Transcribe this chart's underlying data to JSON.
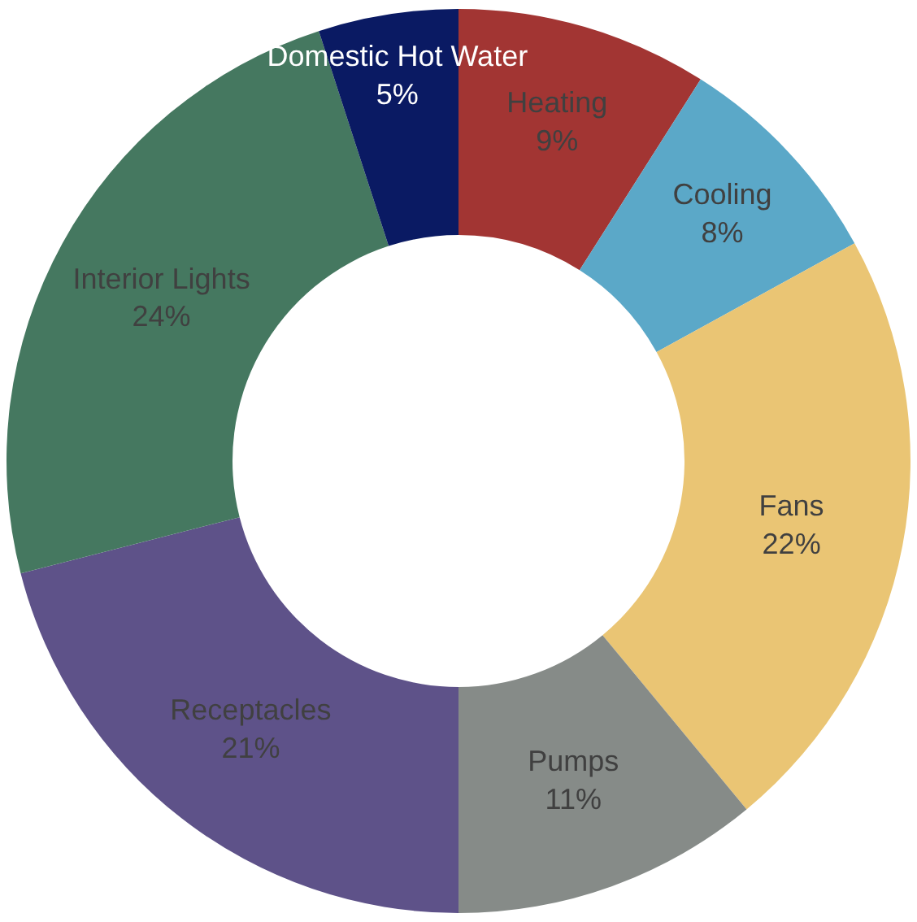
{
  "chart_data": {
    "type": "donut",
    "categories": [
      "Heating",
      "Cooling",
      "Fans",
      "Pumps",
      "Receptacles",
      "Interior Lights",
      "Domestic Hot Water"
    ],
    "values": [
      9,
      8,
      22,
      11,
      21,
      24,
      5
    ],
    "value_labels": [
      "9%",
      "8%",
      "22%",
      "11%",
      "21%",
      "24%",
      "5%"
    ],
    "colors": [
      "#a23533",
      "#5ba8c8",
      "#eac574",
      "#868b88",
      "#5e5289",
      "#457860",
      "#0a1a63"
    ],
    "legend": false
  }
}
